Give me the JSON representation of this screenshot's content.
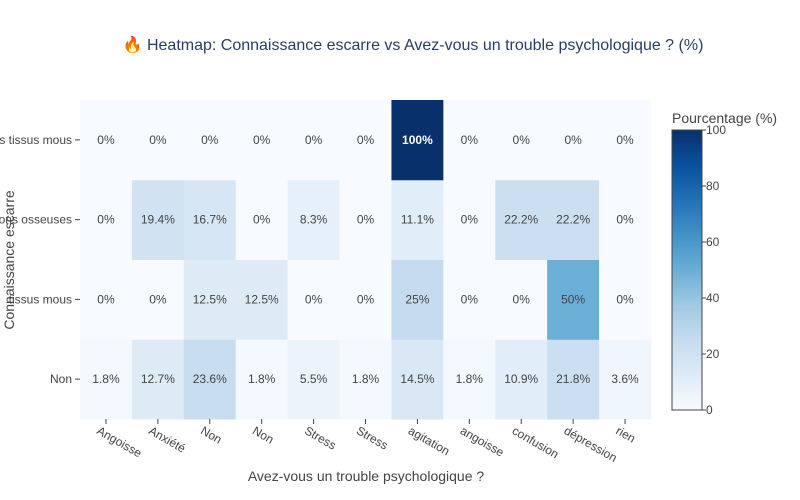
{
  "chart_data": {
    "type": "heatmap",
    "title": "🔥 Heatmap: Connaissance escarre vs Avez-vous un trouble psychologique ? (%)",
    "xlabel": "Avez-vous un trouble psychologique ?",
    "ylabel": "Connaissance escarre",
    "x_categories": [
      "Angoisse",
      "Anxiété",
      "Non",
      "Non ",
      "Stress",
      "Stress ",
      "agitation",
      "angoisse",
      "confusion",
      "dépression",
      "rien"
    ],
    "y_categories": [
      "Non",
      "Oui, tissus mous",
      "Oui, lésions osseuses",
      "Oui, tous les tissus mous"
    ],
    "y_tick_labels_visible": [
      "Non",
      "tissus mous",
      "ions osseuses",
      "s tissus mous"
    ],
    "z": [
      [
        1.8,
        12.7,
        23.6,
        1.8,
        5.5,
        1.8,
        14.5,
        1.8,
        10.9,
        21.8,
        3.6
      ],
      [
        0,
        0,
        12.5,
        12.5,
        0,
        0,
        25,
        0,
        0,
        50,
        0
      ],
      [
        0,
        19.4,
        16.7,
        0,
        8.3,
        0,
        11.1,
        0,
        22.2,
        22.2,
        0
      ],
      [
        0,
        0,
        0,
        0,
        0,
        0,
        100,
        0,
        0,
        0,
        0
      ]
    ],
    "text": [
      [
        "1.8%",
        "12.7%",
        "23.6%",
        "1.8%",
        "5.5%",
        "1.8%",
        "14.5%",
        "1.8%",
        "10.9%",
        "21.8%",
        "3.6%"
      ],
      [
        "0%",
        "0%",
        "12.5%",
        "12.5%",
        "0%",
        "0%",
        "25%",
        "0%",
        "0%",
        "50%",
        "0%"
      ],
      [
        "0%",
        "19.4%",
        "16.7%",
        "0%",
        "8.3%",
        "0%",
        "11.1%",
        "0%",
        "22.2%",
        "22.2%",
        "0%"
      ],
      [
        "0%",
        "0%",
        "0%",
        "0%",
        "0%",
        "0%",
        "100%",
        "0%",
        "0%",
        "0%",
        "0%"
      ]
    ],
    "zmin": 0,
    "zmax": 100,
    "colorscale": "Blues",
    "colorbar": {
      "title": "Pourcentage (%)",
      "ticks": [
        0,
        20,
        40,
        60,
        80,
        100
      ],
      "tick_labels": [
        "0",
        "20",
        "40",
        "60",
        "80",
        "100"
      ]
    }
  }
}
